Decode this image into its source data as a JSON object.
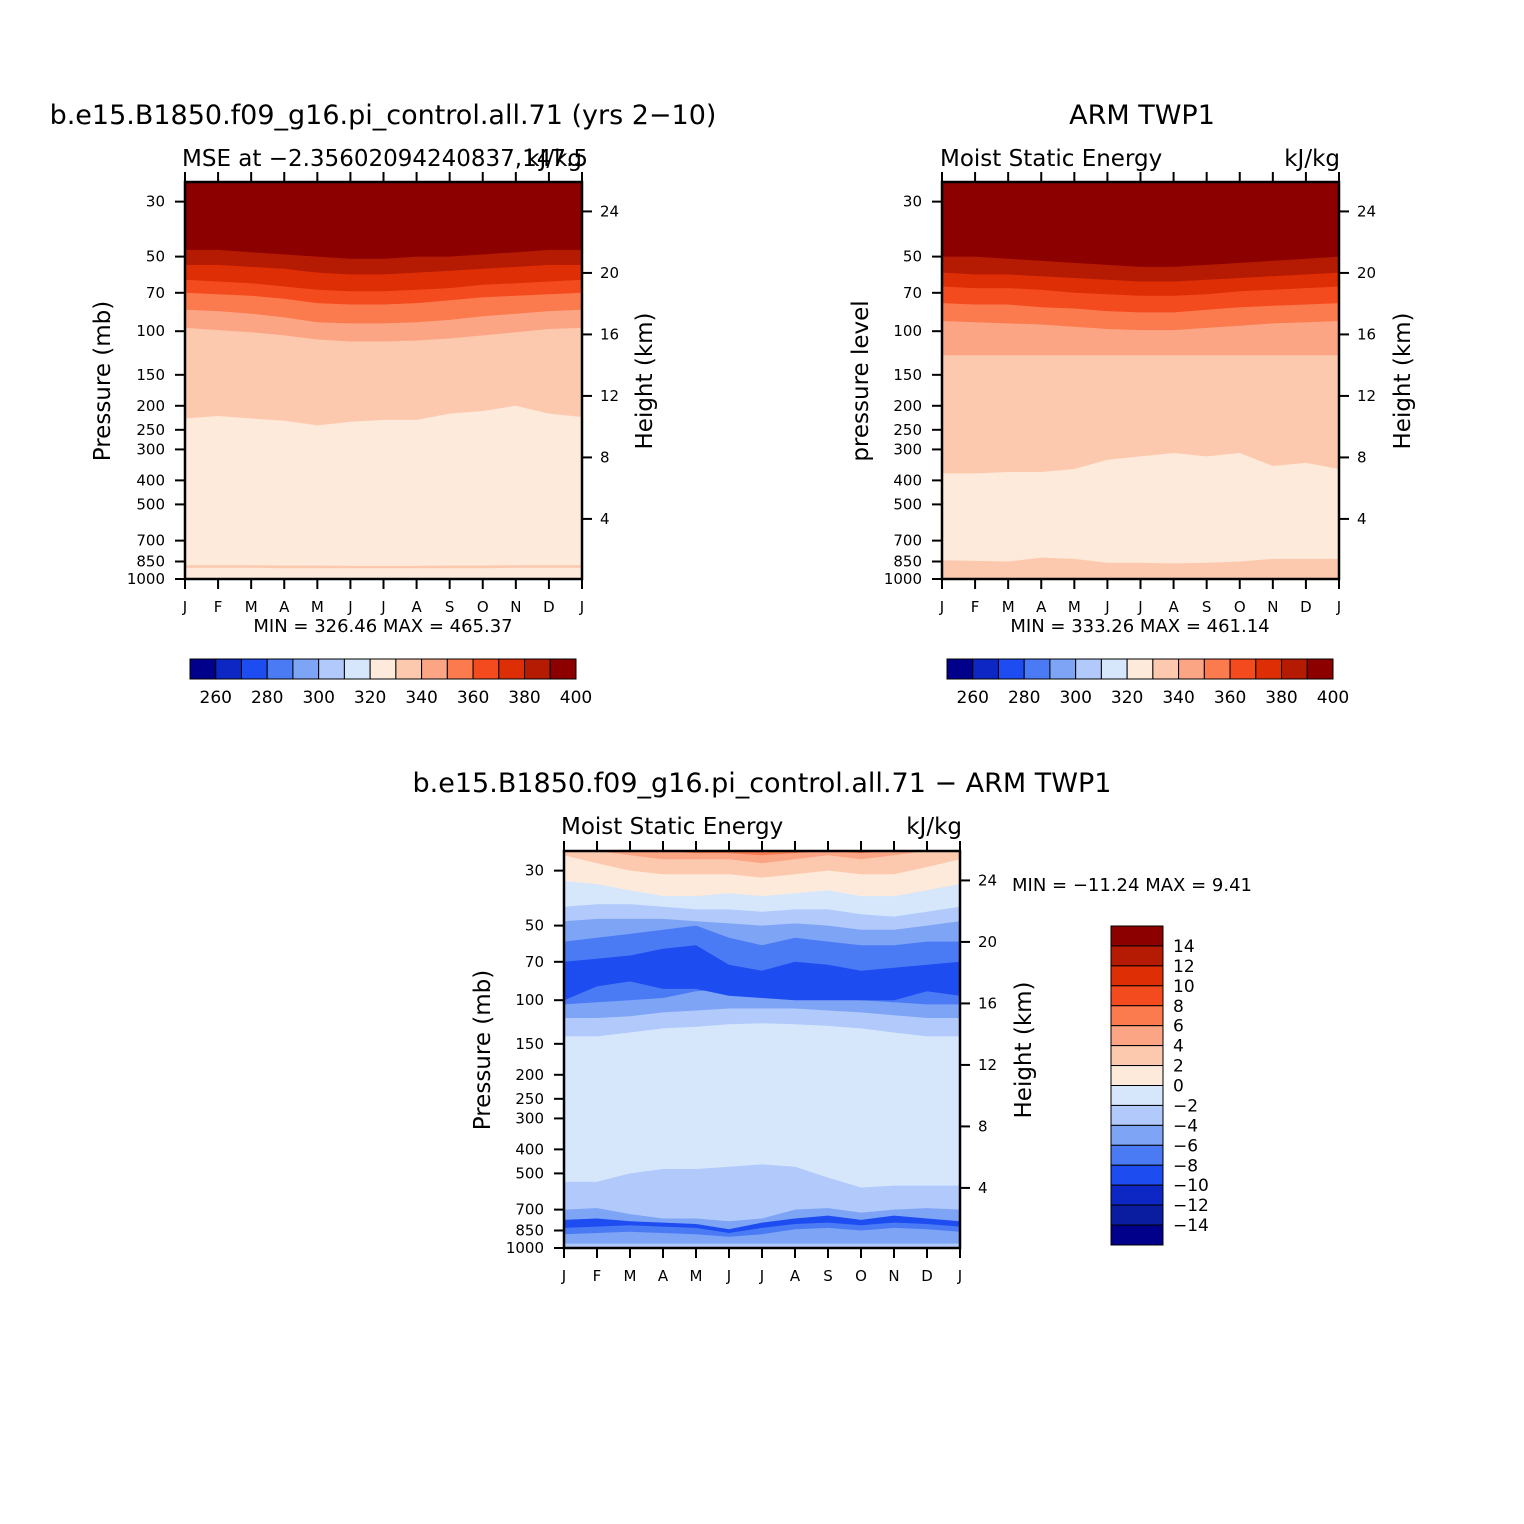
{
  "chart_data": [
    {
      "type": "heatmap",
      "title": "b.e15.B1850.f09_g16.pi_control.all.71 (yrs 2-10)",
      "subtitle_left": "MSE at -2.35602094240837,147.5",
      "subtitle_right": "kJ/kg",
      "xlabel": "",
      "ylabel": "Pressure (mb)",
      "ylabel_right": "Height (km)",
      "x_ticks": [
        "J",
        "F",
        "M",
        "A",
        "M",
        "J",
        "J",
        "A",
        "S",
        "O",
        "N",
        "D",
        "J"
      ],
      "y_ticks": [
        30,
        50,
        70,
        100,
        150,
        200,
        250,
        300,
        400,
        500,
        700,
        850,
        1000
      ],
      "y_ticks_right": [
        24,
        20,
        16,
        12,
        8,
        4
      ],
      "ylim": [
        1000,
        25
      ],
      "y_scale": "log",
      "stats": {
        "min_label": "MIN =",
        "min": "326.46",
        "max_label": "MAX =",
        "max": "465.37"
      },
      "colorbar": {
        "orientation": "horizontal",
        "levels": [
          260,
          280,
          300,
          320,
          340,
          360,
          380,
          400
        ],
        "colors": [
          "#00008b",
          "#0c27c4",
          "#1d4cf0",
          "#4a7bf5",
          "#7ea4f6",
          "#b1c9fb",
          "#d6e7fc",
          "#fdeada",
          "#fdc9ae",
          "#fba585",
          "#fb7a4e",
          "#f34a1e",
          "#dd2e06",
          "#b51a03",
          "#8c0000"
        ]
      },
      "bands": [
        {
          "level": "<300",
          "color": "#fdeada",
          "upper_p": [
            1000,
            1000,
            1000,
            1000,
            1000,
            1000,
            1000,
            1000,
            1000,
            1000,
            1000,
            1000,
            1000
          ]
        },
        {
          "level": 320,
          "color": "#fdc9ae",
          "upper_p": [
            900,
            900,
            900,
            905,
            905,
            905,
            905,
            905,
            905,
            905,
            900,
            900,
            900
          ]
        },
        {
          "level": 330,
          "color": "#fdeada",
          "upper_p": [
            880,
            880,
            880,
            882,
            882,
            885,
            885,
            885,
            882,
            882,
            880,
            880,
            880
          ]
        },
        {
          "level": 340,
          "color": "#fdc9ae",
          "upper_p": [
            225,
            220,
            225,
            230,
            240,
            232,
            228,
            228,
            215,
            210,
            200,
            215,
            222
          ]
        },
        {
          "level": 350,
          "color": "#fba585",
          "upper_p": [
            97,
            99,
            101,
            104,
            108,
            110,
            110,
            109,
            107,
            104,
            101,
            98,
            97
          ]
        },
        {
          "level": 360,
          "color": "#fb7a4e",
          "upper_p": [
            82,
            83,
            85,
            88,
            92,
            93,
            93,
            92,
            90,
            87,
            85,
            83,
            82
          ]
        },
        {
          "level": 370,
          "color": "#f34a1e",
          "upper_p": [
            70,
            71,
            72,
            74,
            77,
            78,
            78,
            77,
            75,
            73,
            72,
            71,
            70
          ]
        },
        {
          "level": 380,
          "color": "#dd2e06",
          "upper_p": [
            62,
            63,
            64,
            66,
            68,
            69,
            69,
            68,
            67,
            65,
            64,
            63,
            62
          ]
        },
        {
          "level": 390,
          "color": "#b51a03",
          "upper_p": [
            54,
            54,
            55,
            56,
            58,
            59,
            59,
            58,
            57,
            56,
            55,
            54,
            54
          ]
        },
        {
          "level": 400,
          "color": "#8c0000",
          "upper_p": [
            47,
            47,
            48,
            49,
            50,
            51,
            51,
            50,
            50,
            49,
            48,
            47,
            47
          ]
        }
      ]
    },
    {
      "type": "heatmap",
      "title": "ARM TWP1",
      "subtitle_left": "Moist Static Energy",
      "subtitle_right": "kJ/kg",
      "xlabel": "",
      "ylabel": "pressure level",
      "ylabel_right": "Height (km)",
      "x_ticks": [
        "J",
        "F",
        "M",
        "A",
        "M",
        "J",
        "J",
        "A",
        "S",
        "O",
        "N",
        "D",
        "J"
      ],
      "y_ticks": [
        30,
        50,
        70,
        100,
        150,
        200,
        250,
        300,
        400,
        500,
        700,
        850,
        1000
      ],
      "y_ticks_right": [
        24,
        20,
        16,
        12,
        8,
        4
      ],
      "ylim": [
        1000,
        25
      ],
      "y_scale": "log",
      "stats": {
        "min_label": "MIN =",
        "min": "333.26",
        "max_label": "MAX =",
        "max": "461.14"
      },
      "colorbar": {
        "orientation": "horizontal",
        "levels": [
          260,
          280,
          300,
          320,
          340,
          360,
          380,
          400
        ],
        "colors": [
          "#00008b",
          "#0c27c4",
          "#1d4cf0",
          "#4a7bf5",
          "#7ea4f6",
          "#b1c9fb",
          "#d6e7fc",
          "#fdeada",
          "#fdc9ae",
          "#fba585",
          "#fb7a4e",
          "#f34a1e",
          "#dd2e06",
          "#b51a03",
          "#8c0000"
        ]
      },
      "bands": [
        {
          "level": 330,
          "color": "#fdc9ae",
          "upper_p": [
            1000,
            1000,
            1000,
            1000,
            1000,
            1000,
            1000,
            1000,
            1000,
            1000,
            1000,
            1000,
            1000
          ]
        },
        {
          "level": 335,
          "color": "#fdeada",
          "upper_p": [
            840,
            845,
            850,
            820,
            830,
            860,
            860,
            865,
            860,
            850,
            830,
            830,
            830
          ]
        },
        {
          "level": 340,
          "color": "#fdc9ae",
          "upper_p": [
            375,
            375,
            370,
            370,
            360,
            330,
            320,
            310,
            320,
            310,
            350,
            340,
            360
          ]
        },
        {
          "level": 350,
          "color": "#fba585",
          "upper_p": [
            125,
            125,
            125,
            125,
            125,
            125,
            125,
            125,
            125,
            125,
            125,
            125,
            125
          ]
        },
        {
          "level": 360,
          "color": "#fb7a4e",
          "upper_p": [
            91,
            92,
            93,
            94,
            96,
            98,
            99,
            99,
            97,
            95,
            93,
            92,
            91
          ]
        },
        {
          "level": 370,
          "color": "#f34a1e",
          "upper_p": [
            77,
            78,
            78,
            80,
            81,
            83,
            84,
            84,
            82,
            80,
            79,
            78,
            77
          ]
        },
        {
          "level": 380,
          "color": "#dd2e06",
          "upper_p": [
            66,
            67,
            67,
            68,
            70,
            71,
            72,
            72,
            71,
            69,
            68,
            67,
            66
          ]
        },
        {
          "level": 390,
          "color": "#b51a03",
          "upper_p": [
            58,
            59,
            59,
            60,
            61,
            62,
            63,
            63,
            62,
            61,
            60,
            59,
            58
          ]
        },
        {
          "level": 400,
          "color": "#8c0000",
          "upper_p": [
            50,
            50,
            51,
            52,
            53,
            54,
            55,
            55,
            54,
            53,
            52,
            51,
            50
          ]
        }
      ]
    },
    {
      "type": "heatmap",
      "title": "b.e15.B1850.f09_g16.pi_control.all.71 - ARM TWP1",
      "subtitle_left": "Moist Static Energy",
      "subtitle_right": "kJ/kg",
      "xlabel": "",
      "ylabel": "Pressure (mb)",
      "ylabel_right": "Height (km)",
      "x_ticks": [
        "J",
        "F",
        "M",
        "A",
        "M",
        "J",
        "J",
        "A",
        "S",
        "O",
        "N",
        "D",
        "J"
      ],
      "y_ticks": [
        30,
        50,
        70,
        100,
        150,
        200,
        250,
        300,
        400,
        500,
        700,
        850,
        1000
      ],
      "y_ticks_right": [
        24,
        20,
        16,
        12,
        8,
        4
      ],
      "ylim": [
        1000,
        25
      ],
      "y_scale": "log",
      "stats": {
        "min_label": "MIN =",
        "min": "-11.24",
        "max_label": "MAX =",
        "max": "9.41"
      },
      "colorbar": {
        "orientation": "vertical",
        "levels": [
          14,
          12,
          10,
          8,
          6,
          4,
          2,
          0,
          -2,
          -4,
          -6,
          -8,
          -10,
          -12,
          -14
        ],
        "colors": [
          "#8c0000",
          "#b51a03",
          "#dd2e06",
          "#f34a1e",
          "#fb7a4e",
          "#fba585",
          "#fdc9ae",
          "#fdeada",
          "#d6e7fc",
          "#b1c9fb",
          "#7ea4f6",
          "#4a7bf5",
          "#1d4cf0",
          "#0c27c4",
          "#0a1ca0",
          "#00008b"
        ]
      },
      "bands": [
        {
          "level": -4,
          "color": "#b1c9fb",
          "upper_p": [
            1000,
            1000,
            1000,
            1000,
            1000,
            1000,
            1000,
            1000,
            1000,
            1000,
            1000,
            1000,
            1000
          ]
        },
        {
          "level": -6,
          "color": "#7ea4f6",
          "upper_p": [
            960,
            960,
            960,
            960,
            960,
            960,
            960,
            960,
            960,
            960,
            960,
            960,
            960
          ]
        },
        {
          "level": -8,
          "color": "#4a7bf5",
          "upper_p": [
            880,
            870,
            860,
            870,
            880,
            900,
            880,
            840,
            830,
            850,
            830,
            840,
            860
          ]
        },
        {
          "level": -10,
          "color": "#1d4cf0",
          "upper_p": [
            830,
            820,
            810,
            820,
            830,
            870,
            830,
            800,
            790,
            810,
            790,
            800,
            820
          ]
        },
        {
          "level": -6,
          "color": "#7ea4f6",
          "upper_p": [
            770,
            760,
            780,
            790,
            800,
            840,
            790,
            760,
            740,
            770,
            740,
            760,
            780
          ]
        },
        {
          "level": -4,
          "color": "#b1c9fb",
          "upper_p": [
            700,
            690,
            730,
            760,
            760,
            780,
            760,
            700,
            690,
            720,
            700,
            690,
            700
          ]
        },
        {
          "level": -2,
          "color": "#d6e7fc",
          "upper_p": [
            540,
            540,
            500,
            480,
            480,
            470,
            460,
            470,
            520,
            570,
            560,
            560,
            560
          ]
        },
        {
          "level": -4,
          "color": "#b1c9fb",
          "upper_p": [
            140,
            140,
            135,
            130,
            128,
            125,
            124,
            125,
            127,
            130,
            135,
            140,
            140
          ]
        },
        {
          "level": -6,
          "color": "#7ea4f6",
          "upper_p": [
            118,
            118,
            116,
            112,
            110,
            108,
            108,
            108,
            110,
            112,
            115,
            118,
            118
          ]
        },
        {
          "level": -8,
          "color": "#4a7bf5",
          "upper_p": [
            104,
            102,
            100,
            98,
            92,
            90,
            94,
            96,
            98,
            100,
            102,
            104,
            104
          ]
        },
        {
          "level": -10,
          "color": "#1d4cf0",
          "upper_p": [
            100,
            88,
            84,
            90,
            90,
            96,
            98,
            100,
            100,
            100,
            100,
            92,
            96
          ]
        },
        {
          "level": -8,
          "color": "#4a7bf5",
          "upper_p": [
            70,
            68,
            66,
            62,
            60,
            72,
            76,
            70,
            72,
            76,
            74,
            72,
            70
          ]
        },
        {
          "level": -6,
          "color": "#7ea4f6",
          "upper_p": [
            58,
            56,
            54,
            52,
            50,
            56,
            60,
            56,
            58,
            60,
            60,
            58,
            58
          ]
        },
        {
          "level": -4,
          "color": "#b1c9fb",
          "upper_p": [
            48,
            47,
            47,
            47,
            48,
            49,
            50,
            49,
            50,
            52,
            52,
            50,
            48
          ]
        },
        {
          "level": -2,
          "color": "#d6e7fc",
          "upper_p": [
            42,
            41,
            41,
            42,
            43,
            43,
            44,
            43,
            43,
            45,
            46,
            44,
            42
          ]
        },
        {
          "level": 0,
          "color": "#fdeada",
          "upper_p": [
            33,
            34,
            36,
            38,
            38,
            37,
            38,
            37,
            36,
            38,
            38,
            36,
            34
          ]
        },
        {
          "level": 2,
          "color": "#fdc9ae",
          "upper_p": [
            26,
            28,
            30,
            31,
            31,
            31,
            32,
            31,
            30,
            31,
            31,
            29,
            27
          ]
        },
        {
          "level": 4,
          "color": "#fba585",
          "upper_p": [
            25,
            25,
            26,
            27,
            27,
            27,
            28,
            27,
            26,
            27,
            26,
            25,
            25
          ]
        },
        {
          "level": 6,
          "color": "#fb7a4e",
          "upper_p": [
            25,
            25,
            25,
            25,
            25.5,
            25.5,
            26,
            25.5,
            25,
            25.5,
            25,
            25,
            25
          ]
        }
      ]
    }
  ]
}
